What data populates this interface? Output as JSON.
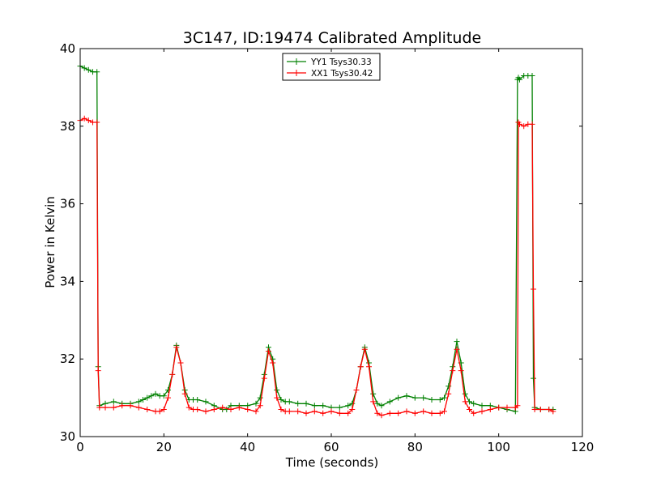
{
  "chart_data": {
    "type": "line",
    "title": "3C147, ID:19474 Calibrated Amplitude",
    "xlabel": "Time (seconds)",
    "ylabel": "Power in Kelvin",
    "xlim": [
      0,
      120
    ],
    "ylim": [
      30,
      40
    ],
    "xticks": [
      0,
      20,
      40,
      60,
      80,
      100,
      120
    ],
    "yticks": [
      30,
      32,
      34,
      36,
      38,
      40
    ],
    "grid": false,
    "legend_position": "top-center",
    "marker": "+",
    "series": [
      {
        "name": "YY1 Tsys30.33",
        "color": "#008000",
        "x": [
          0,
          1,
          2,
          3,
          4,
          4.3,
          4.6,
          6,
          8,
          10,
          12,
          14,
          15,
          16,
          17,
          18,
          19,
          20,
          21,
          22,
          23,
          24,
          25,
          26,
          27,
          28,
          30,
          32,
          34,
          35,
          36,
          38,
          40,
          42,
          43,
          44,
          45,
          46,
          47,
          48,
          49,
          50,
          52,
          54,
          56,
          58,
          60,
          62,
          64,
          65,
          66,
          67,
          68,
          69,
          70,
          71,
          72,
          74,
          76,
          78,
          80,
          82,
          84,
          86,
          87,
          88,
          89,
          90,
          91,
          92,
          93,
          94,
          96,
          98,
          100,
          102,
          104,
          104.5,
          104.7,
          105,
          106,
          107,
          108,
          108.3,
          108.6,
          110,
          112,
          113
        ],
        "y": [
          39.55,
          39.5,
          39.45,
          39.4,
          39.4,
          31.8,
          30.8,
          30.85,
          30.9,
          30.85,
          30.85,
          30.9,
          30.95,
          31.0,
          31.05,
          31.1,
          31.05,
          31.05,
          31.2,
          31.6,
          32.35,
          31.9,
          31.2,
          30.95,
          30.95,
          30.95,
          30.9,
          30.8,
          30.7,
          30.7,
          30.8,
          30.8,
          30.8,
          30.85,
          31.0,
          31.6,
          32.3,
          32.0,
          31.2,
          30.95,
          30.9,
          30.9,
          30.85,
          30.85,
          30.8,
          30.8,
          30.75,
          30.75,
          30.8,
          30.85,
          31.2,
          31.8,
          32.3,
          31.9,
          31.1,
          30.85,
          30.8,
          30.9,
          31.0,
          31.05,
          31.0,
          31.0,
          30.95,
          30.95,
          31.0,
          31.3,
          31.8,
          32.45,
          31.9,
          31.1,
          30.9,
          30.85,
          30.8,
          30.8,
          30.75,
          30.7,
          30.65,
          39.2,
          39.25,
          39.2,
          39.3,
          39.3,
          39.3,
          31.5,
          30.75,
          30.7,
          30.7,
          30.7
        ]
      },
      {
        "name": "XX1 Tsys30.42",
        "color": "#ff0000",
        "x": [
          0,
          1,
          2,
          3,
          4,
          4.3,
          4.6,
          6,
          8,
          10,
          12,
          14,
          16,
          18,
          19,
          20,
          21,
          22,
          23,
          24,
          25,
          26,
          27,
          28,
          30,
          32,
          34,
          36,
          38,
          40,
          42,
          43,
          44,
          45,
          46,
          47,
          48,
          49,
          50,
          52,
          54,
          56,
          58,
          60,
          62,
          64,
          65,
          66,
          67,
          68,
          69,
          70,
          71,
          72,
          74,
          76,
          78,
          80,
          82,
          84,
          86,
          87,
          88,
          89,
          90,
          91,
          92,
          93,
          94,
          96,
          98,
          100,
          102,
          104,
          104.5,
          104.7,
          105,
          106,
          107,
          108,
          108.3,
          108.6,
          110,
          112,
          113
        ],
        "y": [
          38.15,
          38.2,
          38.15,
          38.1,
          38.1,
          31.7,
          30.75,
          30.75,
          30.75,
          30.8,
          30.8,
          30.75,
          30.7,
          30.65,
          30.65,
          30.7,
          31.0,
          31.6,
          32.3,
          31.9,
          31.1,
          30.75,
          30.7,
          30.7,
          30.65,
          30.7,
          30.75,
          30.7,
          30.75,
          30.7,
          30.65,
          30.8,
          31.5,
          32.2,
          31.9,
          31.0,
          30.7,
          30.65,
          30.65,
          30.65,
          30.6,
          30.65,
          30.6,
          30.65,
          30.6,
          30.6,
          30.7,
          31.2,
          31.8,
          32.25,
          31.8,
          30.9,
          30.6,
          30.55,
          30.6,
          30.6,
          30.65,
          30.6,
          30.65,
          30.6,
          30.6,
          30.65,
          31.1,
          31.7,
          32.25,
          31.7,
          30.9,
          30.7,
          30.6,
          30.65,
          30.7,
          30.75,
          30.75,
          30.75,
          30.8,
          38.1,
          38.05,
          38.0,
          38.05,
          38.05,
          33.8,
          30.7,
          30.7,
          30.7,
          30.65
        ]
      }
    ]
  }
}
